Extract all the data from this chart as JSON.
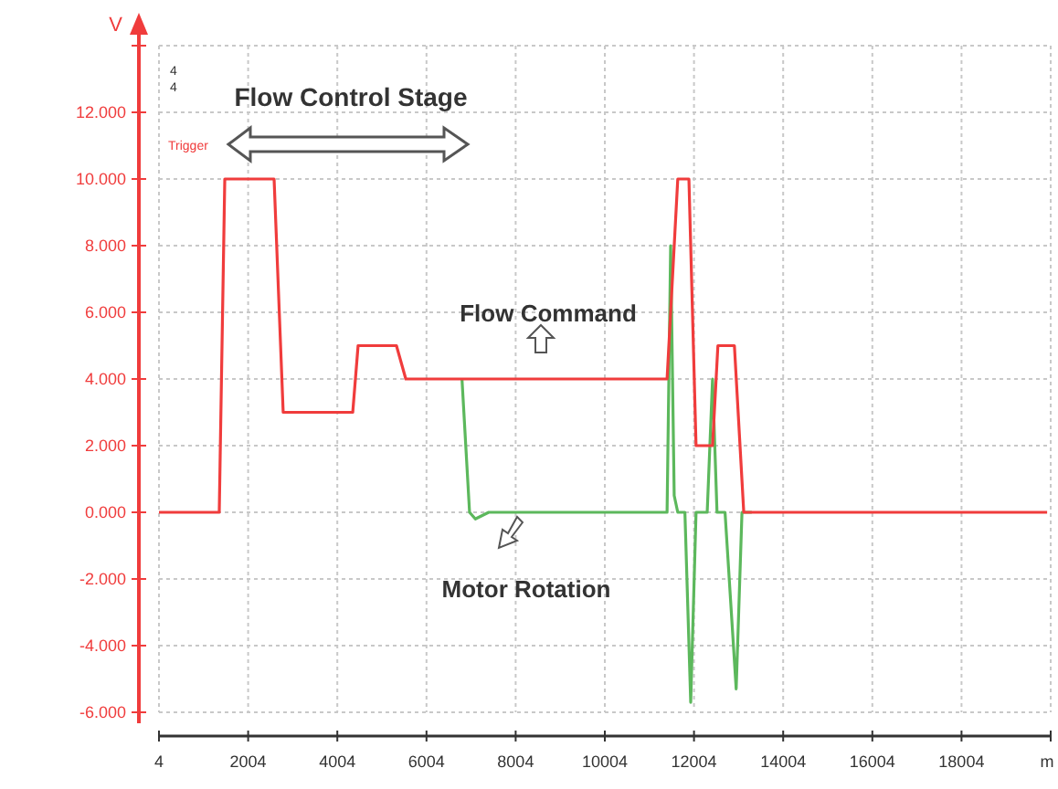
{
  "chart_data": {
    "type": "line",
    "ylabel": "V",
    "xlabel": "m",
    "xlim": [
      4,
      20004
    ],
    "xticks": [
      4,
      2004,
      4004,
      6004,
      8004,
      10004,
      12004,
      14004,
      16004,
      18004,
      {
        "value": 20004,
        "label": null
      }
    ],
    "ylim": [
      -6,
      14
    ],
    "yticks": [
      {
        "value": -6,
        "label": "-6.000"
      },
      {
        "value": -4,
        "label": "-4.000"
      },
      {
        "value": -2,
        "label": "-2.000"
      },
      {
        "value": 0,
        "label": "0.000"
      },
      {
        "value": 2,
        "label": "2.000"
      },
      {
        "value": 4,
        "label": "4.000"
      },
      {
        "value": 6,
        "label": "6.000"
      },
      {
        "value": 8,
        "label": "8.000"
      },
      {
        "value": 10,
        "label": "10.000"
      },
      {
        "value": 12,
        "label": "12.000"
      },
      {
        "value": 14,
        "label": null
      }
    ],
    "grid": true,
    "legend": false,
    "marker": "none",
    "line_style": "solid",
    "annotations": [
      "Flow Control Stage",
      "Trigger",
      "4",
      "4"
    ],
    "series": [
      {
        "name": "Flow Command",
        "color": "#f03c3c",
        "x": [
          4,
          1356,
          1480,
          2586,
          2790,
          4350,
          4470,
          5330,
          5540,
          11400,
          11640,
          11890,
          12050,
          12420,
          12540,
          12910,
          13120,
          19924
        ],
        "values": [
          0,
          0,
          10,
          10,
          3,
          3,
          5,
          5,
          4,
          4,
          10,
          10,
          2,
          2,
          5,
          5,
          0,
          0
        ]
      },
      {
        "name": "Motor Rotation",
        "color": "#5cb85c",
        "x": [
          6800,
          6970,
          7100,
          7400,
          11400,
          11480,
          11560,
          11640,
          11800,
          11930,
          12050,
          12300,
          12420,
          12520,
          12700,
          12950,
          13080,
          13300
        ],
        "values": [
          4,
          0,
          -0.2,
          0,
          0,
          8,
          0.5,
          0,
          0,
          -5.7,
          0,
          0,
          4,
          0,
          0,
          -5.3,
          0,
          0
        ]
      }
    ]
  }
}
